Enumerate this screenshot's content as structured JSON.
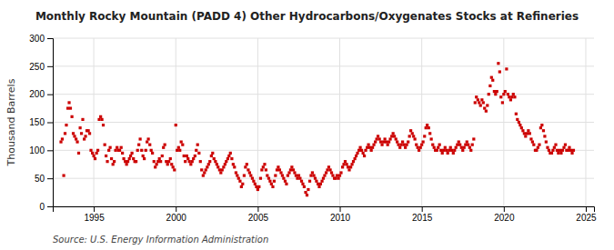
{
  "chart_data": {
    "type": "scatter",
    "title": "Monthly Rocky Mountain (PADD 4) Other Hydrocarbons/Oxygenates Stocks at Refineries",
    "ylabel": "Thousand Barrels",
    "annotations": [
      "Source: U.S. Energy Information Administration"
    ],
    "color": "#cc0000",
    "marker": "square",
    "grid": true,
    "xlim": [
      1992.5,
      2025.5
    ],
    "ylim": [
      0,
      300
    ],
    "xticks": [
      1995,
      2000,
      2005,
      2010,
      2015,
      2020,
      2025
    ],
    "yticks": [
      0,
      50,
      100,
      150,
      200,
      250,
      300
    ],
    "x": [
      1993.0,
      1993.08,
      1993.17,
      1993.25,
      1993.33,
      1993.42,
      1993.5,
      1993.58,
      1993.67,
      1993.75,
      1993.83,
      1993.92,
      1994.0,
      1994.08,
      1994.17,
      1994.25,
      1994.33,
      1994.42,
      1994.5,
      1994.58,
      1994.67,
      1994.75,
      1994.83,
      1994.92,
      1995.0,
      1995.08,
      1995.17,
      1995.25,
      1995.33,
      1995.42,
      1995.5,
      1995.58,
      1995.67,
      1995.75,
      1995.83,
      1995.92,
      1996.0,
      1996.08,
      1996.17,
      1996.25,
      1996.33,
      1996.42,
      1996.5,
      1996.58,
      1996.67,
      1996.75,
      1996.83,
      1996.92,
      1997.0,
      1997.08,
      1997.17,
      1997.25,
      1997.33,
      1997.42,
      1997.5,
      1997.58,
      1997.67,
      1997.75,
      1997.83,
      1997.92,
      1998.0,
      1998.08,
      1998.17,
      1998.25,
      1998.33,
      1998.42,
      1998.5,
      1998.58,
      1998.67,
      1998.75,
      1998.83,
      1998.92,
      1999.0,
      1999.08,
      1999.17,
      1999.25,
      1999.33,
      1999.42,
      1999.5,
      1999.58,
      1999.67,
      1999.75,
      1999.83,
      1999.92,
      2000.0,
      2000.08,
      2000.17,
      2000.25,
      2000.33,
      2000.42,
      2000.5,
      2000.58,
      2000.67,
      2000.75,
      2000.83,
      2000.92,
      2001.0,
      2001.08,
      2001.17,
      2001.25,
      2001.33,
      2001.42,
      2001.5,
      2001.58,
      2001.67,
      2001.75,
      2001.83,
      2001.92,
      2002.0,
      2002.08,
      2002.17,
      2002.25,
      2002.33,
      2002.42,
      2002.5,
      2002.58,
      2002.67,
      2002.75,
      2002.83,
      2002.92,
      2003.0,
      2003.08,
      2003.17,
      2003.25,
      2003.33,
      2003.42,
      2003.5,
      2003.58,
      2003.67,
      2003.75,
      2003.83,
      2003.92,
      2004.0,
      2004.08,
      2004.17,
      2004.25,
      2004.33,
      2004.42,
      2004.5,
      2004.58,
      2004.67,
      2004.75,
      2004.83,
      2004.92,
      2005.0,
      2005.08,
      2005.17,
      2005.25,
      2005.33,
      2005.42,
      2005.5,
      2005.58,
      2005.67,
      2005.75,
      2005.83,
      2005.92,
      2006.0,
      2006.08,
      2006.17,
      2006.25,
      2006.33,
      2006.42,
      2006.5,
      2006.58,
      2006.67,
      2006.75,
      2006.83,
      2006.92,
      2007.0,
      2007.08,
      2007.17,
      2007.25,
      2007.33,
      2007.42,
      2007.5,
      2007.58,
      2007.67,
      2007.75,
      2007.83,
      2007.92,
      2008.0,
      2008.08,
      2008.17,
      2008.25,
      2008.33,
      2008.42,
      2008.5,
      2008.58,
      2008.67,
      2008.75,
      2008.83,
      2008.92,
      2009.0,
      2009.08,
      2009.17,
      2009.25,
      2009.33,
      2009.42,
      2009.5,
      2009.58,
      2009.67,
      2009.75,
      2009.83,
      2009.92,
      2010.0,
      2010.08,
      2010.17,
      2010.25,
      2010.33,
      2010.42,
      2010.5,
      2010.58,
      2010.67,
      2010.75,
      2010.83,
      2010.92,
      2011.0,
      2011.08,
      2011.17,
      2011.25,
      2011.33,
      2011.42,
      2011.5,
      2011.58,
      2011.67,
      2011.75,
      2011.83,
      2011.92,
      2012.0,
      2012.08,
      2012.17,
      2012.25,
      2012.33,
      2012.42,
      2012.5,
      2012.58,
      2012.67,
      2012.75,
      2012.83,
      2012.92,
      2013.0,
      2013.08,
      2013.17,
      2013.25,
      2013.33,
      2013.42,
      2013.5,
      2013.58,
      2013.67,
      2013.75,
      2013.83,
      2013.92,
      2014.0,
      2014.08,
      2014.17,
      2014.25,
      2014.33,
      2014.42,
      2014.5,
      2014.58,
      2014.67,
      2014.75,
      2014.83,
      2014.92,
      2015.0,
      2015.08,
      2015.17,
      2015.25,
      2015.33,
      2015.42,
      2015.5,
      2015.58,
      2015.67,
      2015.75,
      2015.83,
      2015.92,
      2016.0,
      2016.08,
      2016.17,
      2016.25,
      2016.33,
      2016.42,
      2016.5,
      2016.58,
      2016.67,
      2016.75,
      2016.83,
      2016.92,
      2017.0,
      2017.08,
      2017.17,
      2017.25,
      2017.33,
      2017.42,
      2017.5,
      2017.58,
      2017.67,
      2017.75,
      2017.83,
      2017.92,
      2018.0,
      2018.08,
      2018.17,
      2018.25,
      2018.33,
      2018.42,
      2018.5,
      2018.58,
      2018.67,
      2018.75,
      2018.83,
      2018.92,
      2019.0,
      2019.08,
      2019.17,
      2019.25,
      2019.33,
      2019.42,
      2019.5,
      2019.58,
      2019.67,
      2019.75,
      2019.83,
      2019.92,
      2020.0,
      2020.08,
      2020.17,
      2020.25,
      2020.33,
      2020.42,
      2020.5,
      2020.58,
      2020.67,
      2020.75,
      2020.83,
      2020.92,
      2021.0,
      2021.08,
      2021.17,
      2021.25,
      2021.33,
      2021.42,
      2021.5,
      2021.58,
      2021.67,
      2021.75,
      2021.83,
      2021.92,
      2022.0,
      2022.08,
      2022.17,
      2022.25,
      2022.33,
      2022.42,
      2022.5,
      2022.58,
      2022.67,
      2022.75,
      2022.83,
      2022.92,
      2023.0,
      2023.08,
      2023.17,
      2023.25,
      2023.33,
      2023.42,
      2023.5,
      2023.58,
      2023.67,
      2023.75,
      2023.83,
      2023.92,
      2024.0,
      2024.08,
      2024.17,
      2024.25
    ],
    "values": [
      115,
      120,
      55,
      130,
      145,
      175,
      185,
      175,
      160,
      130,
      125,
      120,
      115,
      95,
      140,
      130,
      155,
      120,
      125,
      135,
      135,
      130,
      100,
      95,
      90,
      85,
      95,
      100,
      155,
      160,
      155,
      145,
      110,
      90,
      80,
      100,
      105,
      85,
      75,
      80,
      100,
      105,
      100,
      100,
      105,
      95,
      85,
      80,
      75,
      80,
      85,
      90,
      95,
      85,
      80,
      80,
      100,
      110,
      120,
      100,
      90,
      85,
      100,
      115,
      120,
      110,
      100,
      95,
      80,
      70,
      75,
      80,
      85,
      80,
      90,
      105,
      110,
      80,
      75,
      80,
      85,
      75,
      70,
      65,
      145,
      100,
      105,
      100,
      115,
      110,
      90,
      80,
      90,
      85,
      80,
      75,
      80,
      85,
      90,
      100,
      110,
      95,
      80,
      65,
      55,
      60,
      65,
      70,
      75,
      80,
      90,
      95,
      85,
      80,
      75,
      70,
      65,
      60,
      65,
      70,
      75,
      80,
      85,
      90,
      95,
      85,
      75,
      70,
      60,
      55,
      50,
      45,
      35,
      40,
      55,
      70,
      75,
      65,
      60,
      55,
      50,
      45,
      40,
      35,
      30,
      35,
      50,
      65,
      70,
      75,
      65,
      55,
      50,
      45,
      40,
      35,
      45,
      55,
      65,
      70,
      65,
      60,
      55,
      50,
      45,
      40,
      55,
      60,
      65,
      70,
      65,
      60,
      55,
      50,
      55,
      50,
      45,
      40,
      35,
      25,
      20,
      30,
      45,
      55,
      60,
      55,
      50,
      45,
      40,
      35,
      40,
      45,
      50,
      55,
      60,
      65,
      70,
      65,
      60,
      55,
      50,
      50,
      55,
      50,
      55,
      60,
      70,
      75,
      80,
      75,
      70,
      65,
      70,
      75,
      80,
      85,
      90,
      95,
      100,
      105,
      100,
      95,
      90,
      100,
      105,
      110,
      105,
      100,
      105,
      110,
      115,
      120,
      125,
      120,
      115,
      110,
      115,
      120,
      115,
      110,
      115,
      120,
      125,
      130,
      125,
      120,
      115,
      110,
      105,
      110,
      115,
      110,
      105,
      110,
      115,
      125,
      135,
      130,
      125,
      120,
      110,
      105,
      100,
      105,
      110,
      115,
      125,
      140,
      145,
      140,
      130,
      120,
      110,
      105,
      100,
      100,
      105,
      110,
      100,
      95,
      100,
      105,
      100,
      95,
      100,
      105,
      100,
      95,
      100,
      105,
      110,
      115,
      110,
      105,
      100,
      105,
      110,
      115,
      110,
      105,
      100,
      110,
      120,
      185,
      195,
      190,
      185,
      180,
      190,
      185,
      175,
      170,
      180,
      200,
      215,
      230,
      225,
      205,
      200,
      205,
      255,
      240,
      195,
      185,
      200,
      205,
      245,
      200,
      195,
      190,
      195,
      200,
      195,
      165,
      155,
      150,
      145,
      140,
      135,
      130,
      125,
      130,
      135,
      130,
      120,
      115,
      110,
      100,
      100,
      105,
      110,
      140,
      145,
      135,
      125,
      115,
      105,
      100,
      95,
      95,
      100,
      105,
      110,
      100,
      95,
      100,
      95,
      100,
      105,
      110,
      100,
      100,
      105,
      100,
      95,
      100
    ]
  }
}
